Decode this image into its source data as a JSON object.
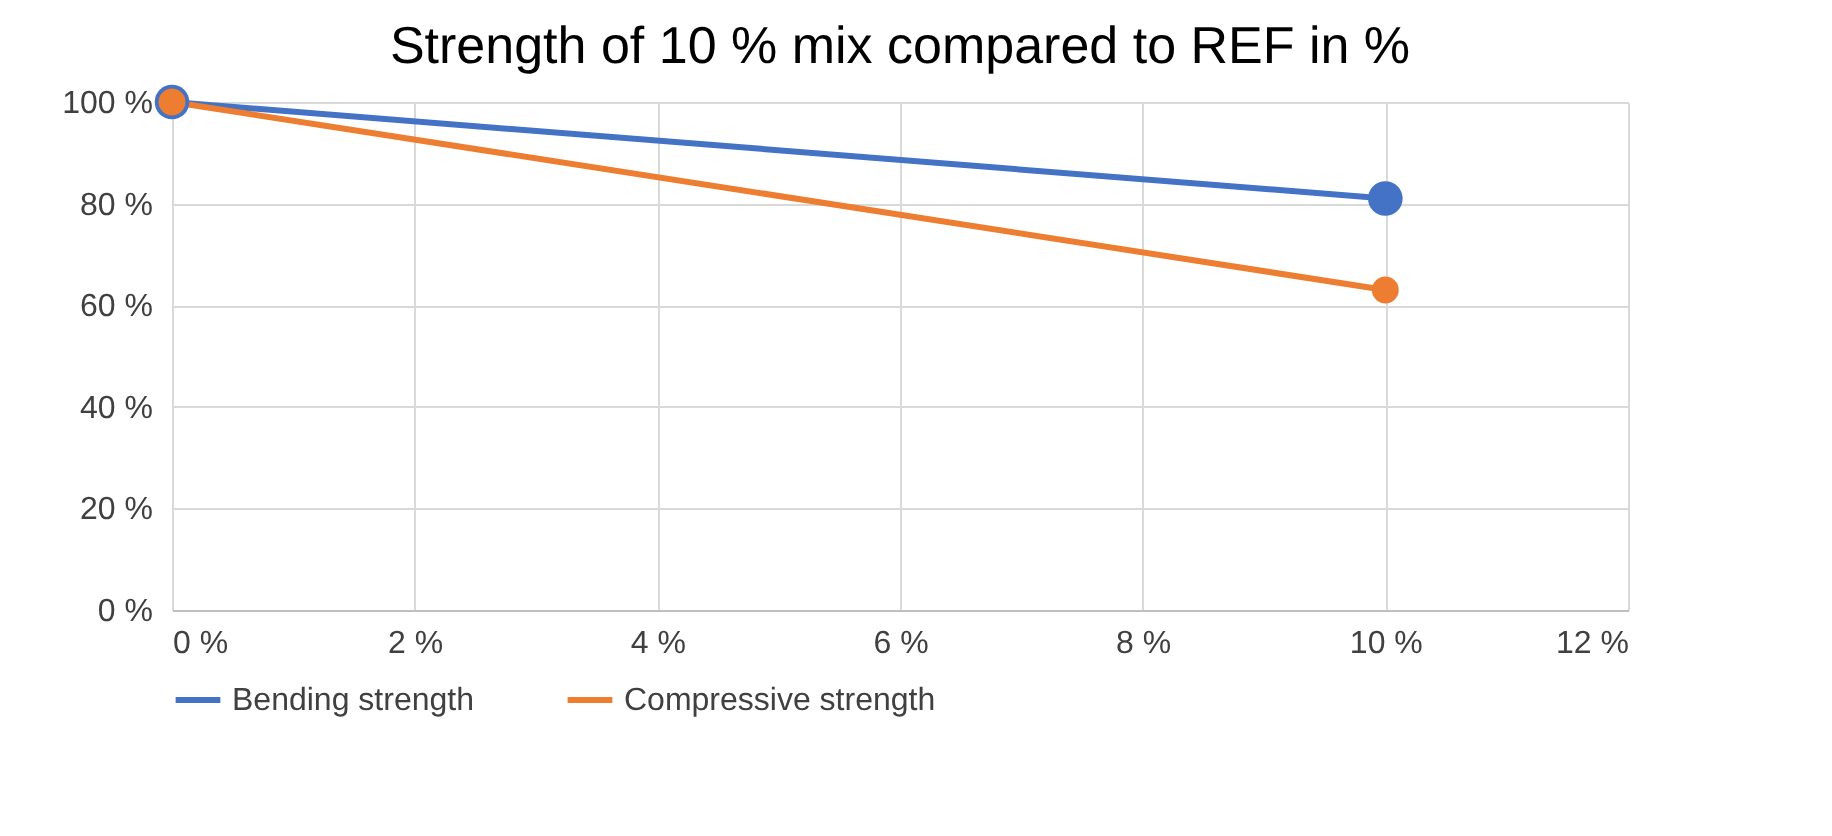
{
  "chart_data": {
    "type": "line",
    "title": "Strength of 10 % mix compared to REF in %",
    "x": [
      0,
      10
    ],
    "series": [
      {
        "name": "Bending strength",
        "color": "#4472c4",
        "values": [
          100,
          81
        ]
      },
      {
        "name": "Compressive strength",
        "color": "#ed7d31",
        "values": [
          100,
          63
        ]
      }
    ],
    "xlim": [
      0,
      12
    ],
    "xticks": [
      {
        "value": 0,
        "label": "0 %"
      },
      {
        "value": 2,
        "label": "2 %"
      },
      {
        "value": 4,
        "label": "4 %"
      },
      {
        "value": 6,
        "label": "6 %"
      },
      {
        "value": 8,
        "label": "8 %"
      },
      {
        "value": 10,
        "label": "10 %"
      },
      {
        "value": 12,
        "label": "12 %"
      }
    ],
    "ylim": [
      0,
      100
    ],
    "yticks": [
      {
        "value": 0,
        "label": "0 %"
      },
      {
        "value": 20,
        "label": "20 %"
      },
      {
        "value": 40,
        "label": "40 %"
      },
      {
        "value": 60,
        "label": "60 %"
      },
      {
        "value": 80,
        "label": "80 %"
      },
      {
        "value": 100,
        "label": "100 %"
      }
    ],
    "grid": true,
    "legend": "bottom",
    "marker": "circle",
    "line_style": "solid"
  }
}
